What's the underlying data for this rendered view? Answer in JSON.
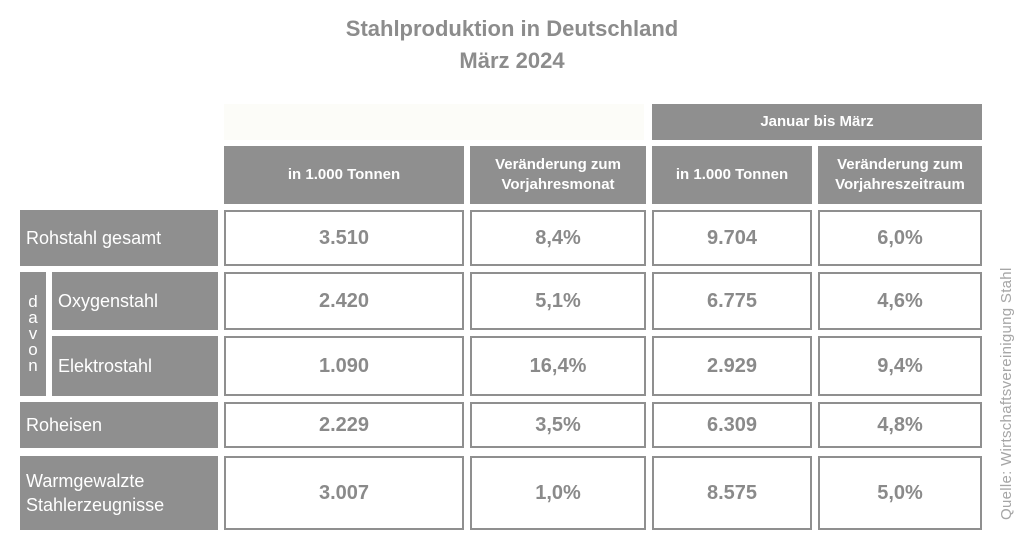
{
  "title": "Stahlproduktion in Deutschland",
  "subtitle": "März 2024",
  "source": "Quelle: Wirtschaftsvereinigung Stahl",
  "group_header": "Januar bis März",
  "davon_label": "davon",
  "columns": [
    "in 1.000 Tonnen",
    "Veränderung zum Vorjahresmonat",
    "in 1.000 Tonnen",
    "Veränderung zum Vorjahreszeitraum"
  ],
  "rows": [
    {
      "label": "Rohstahl gesamt",
      "values": [
        "3.510",
        "8,4%",
        "9.704",
        "6,0%"
      ]
    },
    {
      "label": "Oxygenstahl",
      "values": [
        "2.420",
        "5,1%",
        "6.775",
        "4,6%"
      ]
    },
    {
      "label": "Elektrostahl",
      "values": [
        "1.090",
        "16,4%",
        "2.929",
        "9,4%"
      ]
    },
    {
      "label": "Roheisen",
      "values": [
        "2.229",
        "3,5%",
        "6.309",
        "4,8%"
      ]
    },
    {
      "label": "Warmgewalzte Stahlerzeugnisse",
      "values": [
        "3.007",
        "1,0%",
        "8.575",
        "5,0%"
      ]
    }
  ],
  "chart_data": {
    "type": "table",
    "title": "Stahlproduktion in Deutschland",
    "subtitle": "März 2024",
    "columns": [
      "in 1.000 Tonnen",
      "Veränderung zum Vorjahresmonat",
      "in 1.000 Tonnen",
      "Veränderung zum Vorjahreszeitraum"
    ],
    "column_group": {
      "label": "Januar bis März",
      "columns": [
        2,
        3
      ]
    },
    "rows": [
      {
        "label": "Rohstahl gesamt",
        "values": [
          3510,
          8.4,
          9704,
          6.0
        ]
      },
      {
        "label": "Oxygenstahl",
        "values": [
          2420,
          5.1,
          6775,
          4.6
        ]
      },
      {
        "label": "Elektrostahl",
        "values": [
          1090,
          16.4,
          2929,
          9.4
        ]
      },
      {
        "label": "Roheisen",
        "values": [
          2229,
          3.5,
          6309,
          4.8
        ]
      },
      {
        "label": "Warmgewalzte Stahlerzeugnisse",
        "values": [
          3007,
          1.0,
          8575,
          5.0
        ]
      }
    ]
  }
}
